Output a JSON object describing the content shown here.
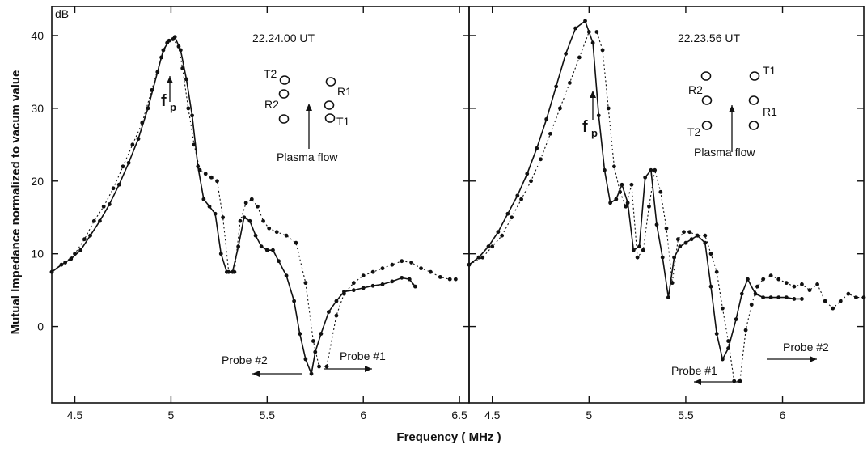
{
  "figure": {
    "ylabel": "Mutual Impedance normalized to vacum value",
    "xlabel": "Frequency ( MHz )",
    "yunit": "dB"
  },
  "chart_data": [
    {
      "type": "line",
      "xlim": [
        4.38,
        6.55
      ],
      "ylim": [
        -10.5,
        44
      ],
      "xticks": [
        "4.5",
        "5",
        "5.5",
        "6",
        "6.5"
      ],
      "yticks": [
        "0",
        "10",
        "20",
        "30",
        "40"
      ],
      "grid": false,
      "annotations": {
        "time": "22.24.00 UT",
        "fp": "f",
        "fp_sub": "p",
        "plasma_flow": "Plasma flow",
        "probe_left": "Probe #2",
        "probe_right": "Probe #1",
        "T2": "T2",
        "R2": "R2",
        "R1": "R1",
        "T1": "T1"
      },
      "series": [
        {
          "style": "solid",
          "x": [
            4.38,
            4.43,
            4.48,
            4.53,
            4.58,
            4.63,
            4.68,
            4.73,
            4.78,
            4.83,
            4.88,
            4.93,
            4.96,
            4.99,
            5.02,
            5.05,
            5.08,
            5.11,
            5.14,
            5.17,
            5.2,
            5.23,
            5.26,
            5.29,
            5.32,
            5.35,
            5.38,
            5.41,
            5.44,
            5.47,
            5.5,
            5.53,
            5.56,
            5.6,
            5.64,
            5.67,
            5.7,
            5.73,
            5.75,
            5.78,
            5.82,
            5.86,
            5.9,
            5.95,
            6.0,
            6.05,
            6.1,
            6.15,
            6.2,
            6.24,
            6.27
          ],
          "y": [
            7.5,
            8.5,
            9.3,
            10.5,
            12.5,
            14.5,
            16.8,
            19.5,
            22.5,
            25.8,
            30.0,
            35.0,
            38.0,
            39.3,
            39.8,
            38.0,
            34.0,
            29.0,
            22.0,
            17.5,
            16.5,
            15.5,
            10.0,
            7.5,
            7.5,
            11.0,
            15.0,
            14.5,
            12.5,
            11.0,
            10.5,
            10.5,
            9.0,
            7.0,
            3.5,
            -1.0,
            -4.5,
            -6.5,
            -3.5,
            -1.0,
            2.0,
            3.5,
            4.8,
            5.0,
            5.3,
            5.6,
            5.8,
            6.2,
            6.7,
            6.5,
            5.5
          ]
        },
        {
          "style": "dotted",
          "x": [
            4.38,
            4.45,
            4.5,
            4.55,
            4.6,
            4.65,
            4.7,
            4.75,
            4.8,
            4.85,
            4.9,
            4.95,
            4.98,
            5.01,
            5.04,
            5.06,
            5.09,
            5.12,
            5.15,
            5.18,
            5.21,
            5.24,
            5.27,
            5.3,
            5.33,
            5.36,
            5.39,
            5.42,
            5.45,
            5.48,
            5.51,
            5.55,
            5.6,
            5.65,
            5.7,
            5.74,
            5.77,
            5.81,
            5.86,
            5.9,
            5.95,
            6.0,
            6.05,
            6.1,
            6.15,
            6.2,
            6.25,
            6.3,
            6.35,
            6.4,
            6.45,
            6.48
          ],
          "y": [
            7.5,
            8.8,
            10.0,
            12.0,
            14.5,
            16.5,
            19.0,
            22.0,
            25.0,
            28.0,
            32.5,
            37.0,
            39.0,
            39.5,
            38.5,
            35.5,
            30.0,
            25.0,
            21.5,
            21.0,
            20.5,
            20.0,
            15.0,
            7.5,
            7.5,
            14.5,
            17.0,
            17.5,
            16.5,
            14.5,
            13.5,
            13.0,
            12.5,
            11.5,
            6.0,
            -2.0,
            -5.5,
            -5.5,
            1.5,
            4.5,
            6.0,
            7.0,
            7.5,
            8.0,
            8.5,
            9.0,
            8.8,
            8.0,
            7.5,
            6.8,
            6.5,
            6.5
          ]
        }
      ]
    },
    {
      "type": "line",
      "xlim": [
        4.38,
        6.42
      ],
      "ylim": [
        -10.5,
        44
      ],
      "xticks": [
        "4.5",
        "5",
        "5.5",
        "6"
      ],
      "yticks": [],
      "grid": false,
      "annotations": {
        "time": "22.23.56 UT",
        "fp": "f",
        "fp_sub": "p",
        "plasma_flow": "Plasma flow",
        "probe_left": "Probe #1",
        "probe_right": "Probe #2",
        "T2": "T2",
        "R2": "R2",
        "R1": "R1",
        "T1": "T1"
      },
      "series": [
        {
          "style": "solid",
          "x": [
            4.38,
            4.43,
            4.48,
            4.53,
            4.58,
            4.63,
            4.68,
            4.73,
            4.78,
            4.83,
            4.88,
            4.93,
            4.98,
            5.02,
            5.05,
            5.08,
            5.11,
            5.14,
            5.17,
            5.2,
            5.23,
            5.26,
            5.29,
            5.32,
            5.35,
            5.38,
            5.41,
            5.44,
            5.47,
            5.5,
            5.53,
            5.56,
            5.6,
            5.63,
            5.66,
            5.69,
            5.72,
            5.76,
            5.79,
            5.82,
            5.86,
            5.9,
            5.94,
            5.98,
            6.02,
            6.06,
            6.1
          ],
          "y": [
            8.5,
            9.5,
            11.0,
            13.0,
            15.5,
            18.0,
            21.0,
            24.5,
            28.5,
            33.0,
            37.5,
            41.0,
            42.0,
            39.0,
            29.0,
            21.5,
            17.0,
            17.5,
            19.5,
            17.0,
            10.5,
            11.0,
            20.5,
            21.5,
            14.0,
            9.5,
            4.0,
            9.5,
            11.0,
            11.5,
            12.0,
            12.5,
            11.5,
            5.5,
            -1.0,
            -4.5,
            -3.0,
            1.0,
            4.5,
            6.5,
            4.5,
            4.0,
            4.0,
            4.0,
            4.0,
            3.8,
            3.8
          ]
        },
        {
          "style": "dotted",
          "x": [
            4.38,
            4.45,
            4.5,
            4.55,
            4.6,
            4.65,
            4.7,
            4.75,
            4.8,
            4.85,
            4.9,
            4.95,
            5.0,
            5.04,
            5.07,
            5.1,
            5.13,
            5.16,
            5.19,
            5.22,
            5.25,
            5.28,
            5.31,
            5.34,
            5.37,
            5.4,
            5.43,
            5.46,
            5.49,
            5.52,
            5.56,
            5.6,
            5.63,
            5.66,
            5.69,
            5.72,
            5.75,
            5.78,
            5.81,
            5.84,
            5.87,
            5.9,
            5.94,
            5.98,
            6.02,
            6.06,
            6.1,
            6.14,
            6.18,
            6.22,
            6.26,
            6.3,
            6.34,
            6.38,
            6.42
          ],
          "y": [
            8.5,
            9.5,
            11.0,
            12.5,
            15.0,
            17.5,
            20.0,
            23.0,
            26.5,
            30.0,
            33.5,
            37.0,
            40.5,
            40.5,
            38.0,
            30.0,
            22.0,
            18.5,
            16.5,
            19.5,
            9.5,
            10.5,
            16.5,
            21.5,
            18.5,
            13.5,
            6.0,
            12.0,
            13.0,
            13.0,
            12.5,
            12.5,
            10.0,
            7.5,
            2.5,
            -2.0,
            -7.5,
            -7.5,
            -0.5,
            3.0,
            5.5,
            6.5,
            7.0,
            6.5,
            6.0,
            5.5,
            5.8,
            5.0,
            5.8,
            3.5,
            2.5,
            3.5,
            4.5,
            4.0,
            4.0
          ]
        }
      ]
    }
  ]
}
